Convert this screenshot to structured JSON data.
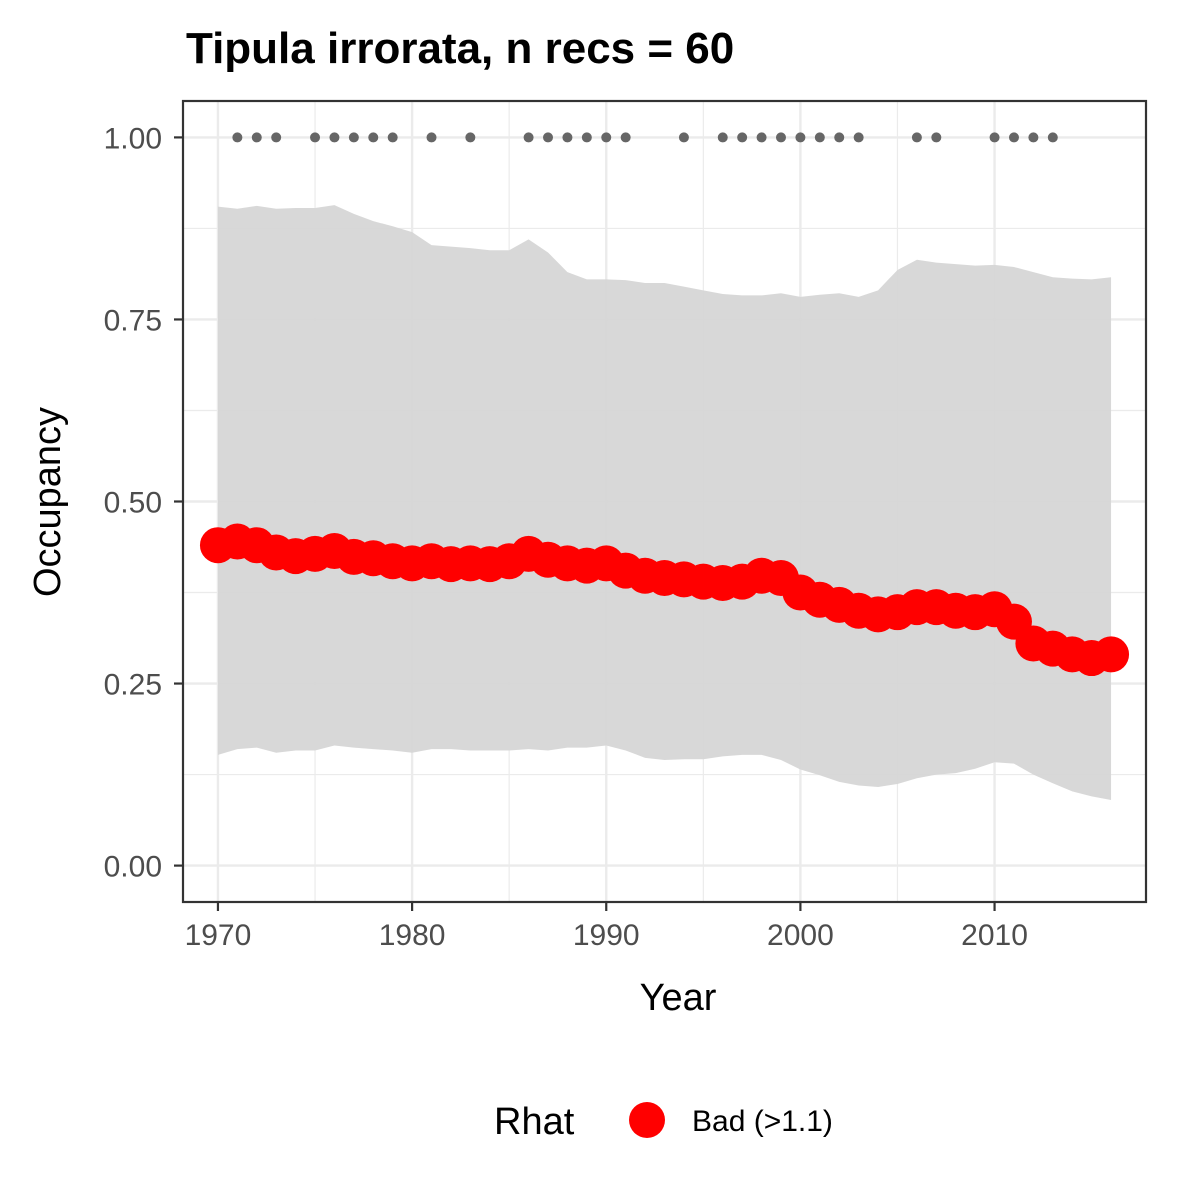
{
  "chart_data": {
    "type": "line",
    "title": "Tipula irrorata, n recs = 60",
    "xlabel": "Year",
    "ylabel": "Occupancy",
    "xlim": [
      1968.2,
      2017.8
    ],
    "ylim": [
      -0.05,
      1.05
    ],
    "x_ticks": [
      1970,
      1980,
      1990,
      2000,
      2010
    ],
    "x_tick_labels": [
      "1970",
      "1980",
      "1990",
      "2000",
      "2010"
    ],
    "y_ticks": [
      0,
      0.25,
      0.5,
      0.75,
      1
    ],
    "y_tick_labels": [
      "0.00",
      "0.25",
      "0.50",
      "0.75",
      "1.00"
    ],
    "grid": true,
    "x": [
      1970,
      1971,
      1972,
      1973,
      1974,
      1975,
      1976,
      1977,
      1978,
      1979,
      1980,
      1981,
      1982,
      1983,
      1984,
      1985,
      1986,
      1987,
      1988,
      1989,
      1990,
      1991,
      1992,
      1993,
      1994,
      1995,
      1996,
      1997,
      1998,
      1999,
      2000,
      2001,
      2002,
      2003,
      2004,
      2005,
      2006,
      2007,
      2008,
      2009,
      2010,
      2011,
      2012,
      2013,
      2014,
      2015,
      2016
    ],
    "series": [
      {
        "name": "Bad (>1.1)",
        "color": "#FF0000",
        "values": [
          0.44,
          0.445,
          0.44,
          0.43,
          0.425,
          0.428,
          0.432,
          0.424,
          0.422,
          0.418,
          0.415,
          0.418,
          0.414,
          0.415,
          0.414,
          0.418,
          0.428,
          0.42,
          0.415,
          0.412,
          0.415,
          0.405,
          0.398,
          0.395,
          0.393,
          0.39,
          0.388,
          0.39,
          0.398,
          0.395,
          0.375,
          0.365,
          0.358,
          0.35,
          0.345,
          0.348,
          0.355,
          0.355,
          0.35,
          0.348,
          0.352,
          0.335,
          0.305,
          0.298,
          0.29,
          0.285,
          0.29
        ]
      }
    ],
    "ci_upper": [
      0.905,
      0.902,
      0.906,
      0.902,
      0.903,
      0.903,
      0.907,
      0.895,
      0.885,
      0.878,
      0.87,
      0.852,
      0.85,
      0.848,
      0.845,
      0.845,
      0.86,
      0.842,
      0.815,
      0.805,
      0.805,
      0.804,
      0.8,
      0.8,
      0.795,
      0.79,
      0.785,
      0.783,
      0.783,
      0.786,
      0.781,
      0.784,
      0.786,
      0.781,
      0.79,
      0.818,
      0.832,
      0.828,
      0.826,
      0.824,
      0.825,
      0.822,
      0.815,
      0.808,
      0.806,
      0.805,
      0.808
    ],
    "ci_lower": [
      0.152,
      0.16,
      0.162,
      0.155,
      0.158,
      0.158,
      0.165,
      0.162,
      0.16,
      0.158,
      0.155,
      0.16,
      0.16,
      0.158,
      0.158,
      0.158,
      0.16,
      0.158,
      0.162,
      0.162,
      0.165,
      0.158,
      0.148,
      0.145,
      0.146,
      0.146,
      0.15,
      0.152,
      0.152,
      0.145,
      0.132,
      0.124,
      0.115,
      0.11,
      0.108,
      0.112,
      0.12,
      0.125,
      0.127,
      0.133,
      0.142,
      0.14,
      0.125,
      0.113,
      0.102,
      0.095,
      0.09
    ],
    "ci_color": "#D6D6D6",
    "record_years": [
      1971,
      1972,
      1973,
      1975,
      1976,
      1977,
      1978,
      1979,
      1981,
      1983,
      1986,
      1987,
      1988,
      1989,
      1990,
      1991,
      1994,
      1996,
      1997,
      1998,
      1999,
      2000,
      2001,
      2002,
      2003,
      2006,
      2007,
      2010,
      2011,
      2012,
      2013
    ],
    "record_marker_y": 1.0,
    "record_marker_color": "#666666",
    "legend": {
      "title": "Rhat",
      "entries": [
        {
          "label": "Bad (>1.1)",
          "color": "#FF0000"
        }
      ],
      "placement": "bottom"
    }
  }
}
